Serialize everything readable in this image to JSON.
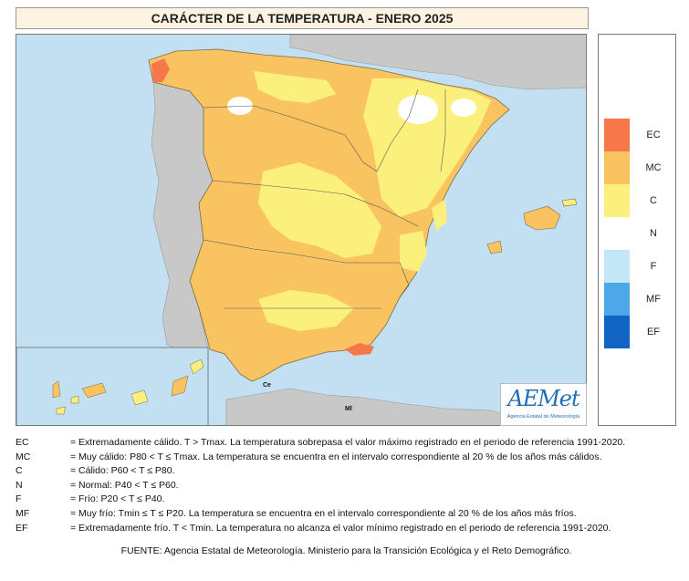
{
  "title": "CARÁCTER DE LA TEMPERATURA - ENERO 2025",
  "colors": {
    "sea": "#c2e0f1",
    "land_other": "#c8c8c8",
    "EC": "#f5774a",
    "MC": "#f9c460",
    "C": "#fbf07c",
    "N": "#ffffff",
    "F": "#c3e7f7",
    "MF": "#4ea8e8",
    "EF": "#0f64c4"
  },
  "legend": [
    {
      "code": "EC",
      "color": "#f5774a"
    },
    {
      "code": "MC",
      "color": "#f9c460"
    },
    {
      "code": "C",
      "color": "#fbf07c"
    },
    {
      "code": "N",
      "color": "#ffffff"
    },
    {
      "code": "F",
      "color": "#c3e7f7"
    },
    {
      "code": "MF",
      "color": "#4ea8e8"
    },
    {
      "code": "EF",
      "color": "#0f64c4"
    }
  ],
  "map_labels": {
    "ceuta": "Ce",
    "melilla": "Ml"
  },
  "logo": {
    "name": "AEMet",
    "subtitle": "Agencia Estatal de Meteorología"
  },
  "definitions": [
    {
      "code": "EC",
      "text": "= Extremadamente cálido. T > Tmax. La temperatura sobrepasa el valor máximo registrado en el periodo de referencia 1991-2020."
    },
    {
      "code": "MC",
      "text": "= Muy cálido: P80 < T ≤ Tmax. La temperatura se encuentra en el intervalo correspondiente al 20 % de los años más cálidos."
    },
    {
      "code": "C",
      "text": "= Cálido: P60 < T ≤ P80."
    },
    {
      "code": "N",
      "text": "= Normal: P40 < T ≤ P60."
    },
    {
      "code": "F",
      "text": "= Frío: P20 < T ≤ P40."
    },
    {
      "code": "MF",
      "text": "= Muy frío: Tmin ≤ T ≤ P20. La temperatura se encuentra en el intervalo correspondiente al 20 % de los años más fríos."
    },
    {
      "code": "EF",
      "text": "= Extremadamente frío. T < Tmin. La temperatura no alcanza el valor mínimo registrado en el periodo de referencia 1991-2020."
    }
  ],
  "source": "FUENTE: Agencia Estatal de Meteorología. Ministerio para la Transición Ecológica y el Reto Demográfico."
}
